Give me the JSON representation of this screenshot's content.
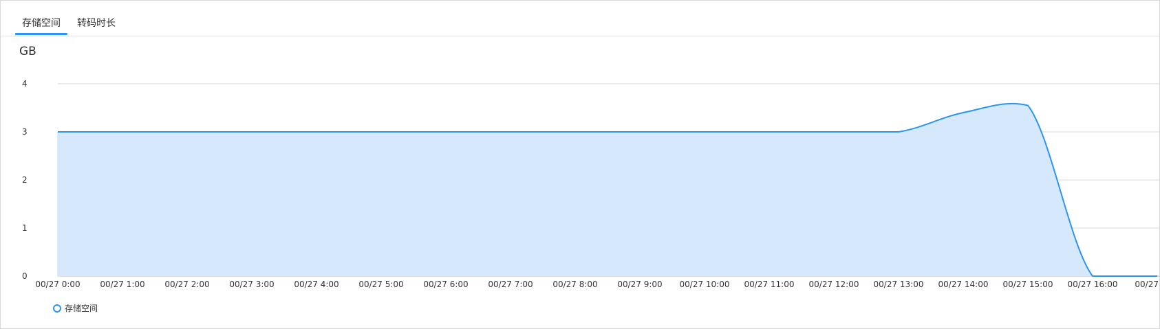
{
  "tabs": [
    {
      "label": "存储空间",
      "active": true
    },
    {
      "label": "转码时长",
      "active": false
    }
  ],
  "accent_color": "#2b95f5",
  "chart_data": {
    "type": "area",
    "ylabel": "GB",
    "ylim": [
      0,
      4
    ],
    "yticks": [
      "0",
      "1",
      "2",
      "3",
      "4"
    ],
    "categories": [
      "00/27 0:00",
      "00/27 1:00",
      "00/27 2:00",
      "00/27 3:00",
      "00/27 4:00",
      "00/27 5:00",
      "00/27 6:00",
      "00/27 7:00",
      "00/27 8:00",
      "00/27 9:00",
      "00/27 10:00",
      "00/27 11:00",
      "00/27 12:00",
      "00/27 13:00",
      "00/27 14:00",
      "00/27 15:00",
      "00/27 16:00",
      "00/27"
    ],
    "series": [
      {
        "name": "存储空间",
        "values": [
          3,
          3,
          3,
          3,
          3,
          3,
          3,
          3,
          3,
          3,
          3,
          3,
          3,
          3,
          3.4,
          3.55,
          0,
          0
        ]
      }
    ],
    "line_color": "#2b95f5",
    "fill_color": "#d6e9fc",
    "grid": true,
    "legend": "bottom-left"
  }
}
